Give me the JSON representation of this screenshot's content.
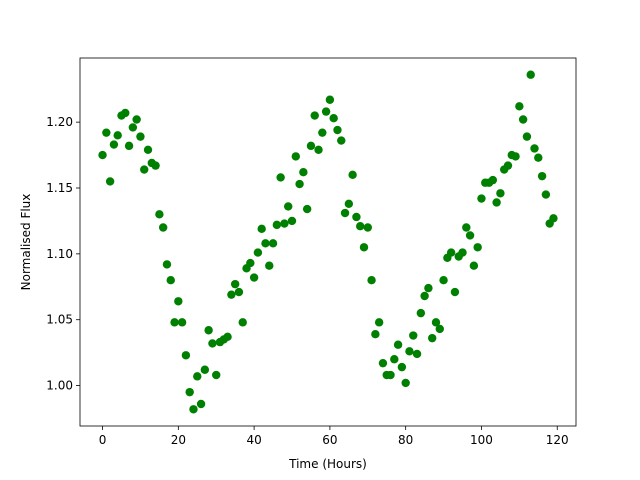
{
  "chart_data": {
    "type": "scatter",
    "xlabel": "Time (Hours)",
    "ylabel": "Normalised Flux",
    "color": "#008000",
    "x": [
      0,
      1,
      2,
      3,
      4,
      5,
      6,
      7,
      8,
      9,
      10,
      11,
      12,
      13,
      14,
      15,
      16,
      17,
      18,
      19,
      20,
      21,
      22,
      23,
      24,
      25,
      26,
      27,
      28,
      29,
      30,
      31,
      32,
      33,
      34,
      35,
      36,
      37,
      38,
      39,
      40,
      41,
      42,
      43,
      44,
      45,
      46,
      47,
      48,
      49,
      50,
      51,
      52,
      53,
      54,
      55,
      56,
      57,
      58,
      59,
      60,
      61,
      62,
      63,
      64,
      65,
      66,
      67,
      68,
      69,
      70,
      71,
      72,
      73,
      74,
      75,
      76,
      77,
      78,
      79,
      80,
      81,
      82,
      83,
      84,
      85,
      86,
      87,
      88,
      89,
      90,
      91,
      92,
      93,
      94,
      95,
      96,
      97,
      98,
      99,
      100,
      101,
      102,
      103,
      104,
      105,
      106,
      107,
      108,
      109,
      110,
      111,
      112,
      113,
      114,
      115,
      116,
      117,
      118,
      119
    ],
    "values": [
      1.175,
      1.192,
      1.155,
      1.183,
      1.19,
      1.205,
      1.207,
      1.182,
      1.196,
      1.202,
      1.189,
      1.164,
      1.179,
      1.169,
      1.167,
      1.13,
      1.12,
      1.092,
      1.08,
      1.048,
      1.064,
      1.048,
      1.023,
      0.995,
      0.982,
      1.007,
      0.986,
      1.012,
      1.042,
      1.032,
      1.008,
      1.033,
      1.035,
      1.037,
      1.069,
      1.077,
      1.071,
      1.048,
      1.089,
      1.093,
      1.082,
      1.101,
      1.119,
      1.108,
      1.091,
      1.108,
      1.122,
      1.158,
      1.123,
      1.136,
      1.125,
      1.174,
      1.153,
      1.162,
      1.134,
      1.182,
      1.205,
      1.179,
      1.192,
      1.208,
      1.217,
      1.203,
      1.194,
      1.186,
      1.131,
      1.138,
      1.16,
      1.128,
      1.121,
      1.105,
      1.12,
      1.08,
      1.039,
      1.048,
      1.017,
      1.008,
      1.008,
      1.02,
      1.031,
      1.014,
      1.002,
      1.026,
      1.038,
      1.024,
      1.055,
      1.068,
      1.074,
      1.036,
      1.048,
      1.043,
      1.08,
      1.097,
      1.101,
      1.071,
      1.098,
      1.101,
      1.12,
      1.114,
      1.091,
      1.105,
      1.142,
      1.154,
      1.154,
      1.156,
      1.139,
      1.146,
      1.164,
      1.167,
      1.175,
      1.174,
      1.212,
      1.202,
      1.189,
      1.236,
      1.18,
      1.173,
      1.159,
      1.145,
      1.123,
      1.127
    ],
    "xlim": [
      -5.95,
      124.95
    ],
    "ylim": [
      0.9693,
      1.2487
    ],
    "xticks": [
      0,
      20,
      40,
      60,
      80,
      100,
      120
    ],
    "yticks": [
      {
        "value": 1.0,
        "label": "1.00"
      },
      {
        "value": 1.05,
        "label": "1.05"
      },
      {
        "value": 1.1,
        "label": "1.10"
      },
      {
        "value": 1.15,
        "label": "1.15"
      },
      {
        "value": 1.2,
        "label": "1.20"
      }
    ]
  }
}
